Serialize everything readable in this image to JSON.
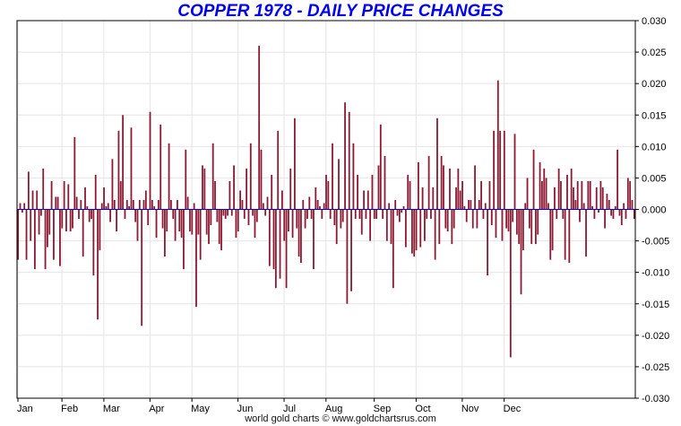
{
  "chart_data": {
    "type": "bar",
    "title": "COPPER 1978 - DAILY PRICE CHANGES",
    "footer": "world gold charts © www.goldchartsrus.com",
    "xlabel": "",
    "ylabel": "",
    "ylim": [
      -0.03,
      0.03
    ],
    "grid": true,
    "y_ticks": [
      "0.030",
      "0.025",
      "0.020",
      "0.015",
      "0.010",
      "0.005",
      "0.000",
      "-0.005",
      "-0.010",
      "-0.015",
      "-0.020",
      "-0.025",
      "-0.030"
    ],
    "y_tick_values": [
      0.03,
      0.025,
      0.02,
      0.015,
      0.01,
      0.005,
      0,
      -0.005,
      -0.01,
      -0.015,
      -0.02,
      -0.025,
      -0.03
    ],
    "months": [
      "Jan",
      "Feb",
      "Mar",
      "Apr",
      "May",
      "Jun",
      "Jul",
      "Aug",
      "Sep",
      "Oct",
      "Nov",
      "Dec"
    ],
    "month_start_index": [
      0,
      21,
      41,
      63,
      83,
      105,
      127,
      147,
      170,
      190,
      212,
      232
    ],
    "colors": {
      "bar": "#8b1a32",
      "zero_line": "#0000cc",
      "grid": "#e4e4e4",
      "axis": "#000000",
      "title": "#0000ee"
    },
    "values": [
      -0.008,
      0.001,
      -0.0005,
      0.001,
      -0.008,
      0.006,
      -0.005,
      0.003,
      -0.0095,
      0.003,
      -0.004,
      -0.001,
      0.0065,
      -0.0095,
      -0.006,
      -0.004,
      0.0045,
      -0.008,
      0.002,
      0.002,
      -0.009,
      -0.003,
      0.0045,
      -0.0035,
      0.004,
      -0.0035,
      -0.003,
      0.0115,
      0.002,
      -0.0015,
      0.0015,
      -0.0075,
      0.0035,
      0.0005,
      -0.002,
      -0.0015,
      -0.0105,
      0.0055,
      -0.0175,
      -0.0065,
      0.001,
      0.0035,
      0.0005,
      0.001,
      -0.002,
      0.008,
      0.0015,
      -0.0035,
      0.0125,
      0.0045,
      0.015,
      -0.0015,
      0.0015,
      0.0005,
      0.013,
      0.0015,
      -0.002,
      -0.005,
      0.0015,
      -0.0185,
      0.0015,
      0.003,
      -0.0025,
      0.0155,
      0.0015,
      0.0005,
      -0.0045,
      0.0015,
      0.0135,
      -0.003,
      -0.0075,
      -0.0035,
      0.0105,
      0.0015,
      -0.0015,
      -0.005,
      0.0015,
      -0.0035,
      -0.0045,
      -0.0095,
      0.0095,
      0.002,
      -0.0035,
      -0.004,
      0.001,
      -0.0155,
      -0.004,
      -0.008,
      0.007,
      0.0065,
      -0.004,
      -0.0055,
      -0.0025,
      0.0105,
      0.0045,
      -0.002,
      -0.0055,
      -0.0065,
      -0.001,
      -0.0015,
      -0.001,
      0.0045,
      -0.001,
      0.007,
      -0.0045,
      -0.0035,
      0.003,
      0.0015,
      -0.0015,
      0.0065,
      -0.0025,
      0.0105,
      -0.001,
      -0.0045,
      -0.002,
      0.026,
      0.0095,
      0.001,
      -0.001,
      0.002,
      -0.009,
      0.0055,
      -0.0095,
      -0.0125,
      0.0125,
      -0.011,
      0.003,
      -0.005,
      -0.0125,
      -0.0035,
      0.0065,
      -0.0045,
      0.0145,
      -0.003,
      -0.0075,
      -0.0085,
      0.0015,
      -0.003,
      -0.0015,
      0.002,
      -0.0015,
      -0.0095,
      0.0035,
      0.0015,
      0.0005,
      -0.0015,
      0.001,
      0.0055,
      0.0045,
      -0.0015,
      0.0105,
      -0.0025,
      -0.0055,
      0.008,
      -0.003,
      -0.002,
      0.017,
      -0.015,
      0.0155,
      -0.013,
      0.0105,
      -0.0015,
      0.0055,
      -0.0015,
      -0.004,
      0.003,
      -0.0015,
      0.003,
      -0.005,
      0.0055,
      -0.0015,
      -0.0015,
      0.007,
      0.0135,
      -0.0015,
      0.0085,
      -0.005,
      0.001,
      -0.0055,
      -0.0125,
      0.0015,
      -0.001,
      -0.002,
      -0.0005,
      0.0005,
      -0.006,
      0.0055,
      0.0045,
      -0.007,
      -0.0075,
      -0.0065,
      0.0075,
      -0.006,
      0.0035,
      -0.005,
      -0.0015,
      0.0085,
      -0.0015,
      0.0035,
      -0.008,
      0.0145,
      -0.0055,
      0.0085,
      0.007,
      -0.003,
      -0.0035,
      0.0065,
      -0.0055,
      -0.003,
      0.0035,
      0.0065,
      0.003,
      0.0045,
      0.0005,
      -0.002,
      0.0015,
      0.0015,
      -0.003,
      0.007,
      -0.003,
      0.0015,
      0.0045,
      -0.0015,
      0.001,
      -0.0105,
      0.0045,
      -0.0025,
      0.0125,
      -0.0045,
      0.0205,
      0.0125,
      -0.005,
      0.0125,
      -0.003,
      -0.0035,
      -0.0235,
      -0.002,
      0.012,
      -0.004,
      -0.0055,
      -0.0135,
      -0.0065,
      0.001,
      0.005,
      -0.003,
      -0.0055,
      0.0095,
      -0.0055,
      -0.004,
      0.0075,
      0.0045,
      0.0065,
      0.005,
      0.001,
      -0.008,
      -0.0065,
      0.0035,
      -0.0015,
      0.0065,
      0.0045,
      -0.0015,
      -0.008,
      0.0055,
      -0.0085,
      0.0065,
      0.0035,
      0.0015,
      0.0045,
      -0.002,
      0.0045,
      0.001,
      -0.0075,
      0.0045,
      0.0045,
      0.0005,
      -0.0015,
      0.0035,
      -0.0005,
      0.0045,
      0.0035,
      -0.003,
      0.0025,
      0.0015,
      -0.001,
      -0.0015,
      0.0005,
      0.0095,
      -0.001,
      -0.0025,
      0.001,
      -0.0015,
      0.005,
      0.0045,
      0.0015,
      -0.0015
    ]
  }
}
